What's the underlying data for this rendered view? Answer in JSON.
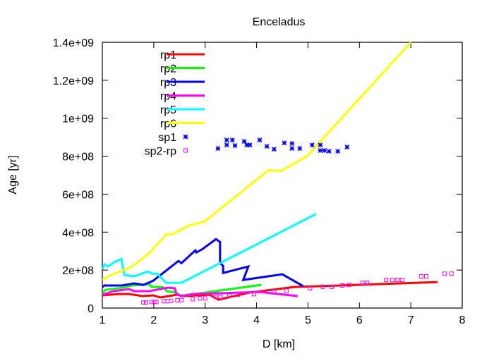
{
  "chart_data": {
    "type": "line",
    "title": "Enceladus",
    "xlabel": "D [km]",
    "ylabel": "Age [yr]",
    "xlim": [
      1,
      8
    ],
    "ylim": [
      0,
      1400000000
    ],
    "xticks": [
      1,
      2,
      3,
      4,
      5,
      6,
      7,
      8
    ],
    "xtick_labels": [
      "1",
      "2",
      "3",
      "4",
      "5",
      "6",
      "7",
      "8"
    ],
    "yticks": [
      0,
      200000000,
      400000000,
      600000000,
      800000000,
      1000000000,
      1200000000,
      1400000000
    ],
    "ytick_labels": [
      "0",
      "2e+08",
      "4e+08",
      "6e+08",
      "8e+08",
      "1e+09",
      "1.2e+09",
      "1.4e+09"
    ],
    "grid": false,
    "legend": "top-left",
    "series": [
      {
        "name": "rp1",
        "style": "line",
        "color": "#ff0000",
        "x": [
          1.0,
          1.3,
          1.52,
          1.78,
          1.99,
          2.13,
          2.44,
          2.58,
          3.09,
          3.26,
          3.85,
          4.73,
          5.6,
          7.52
        ],
        "y": [
          67000000,
          74000000,
          74000000,
          63000000,
          67000000,
          56000000,
          70000000,
          63000000,
          70000000,
          44000000,
          81000000,
          111000000,
          119000000,
          137000000
        ]
      },
      {
        "name": "rp2",
        "style": "line",
        "color": "#00ff00",
        "x": [
          1.0,
          1.07,
          1.38,
          1.58,
          1.92,
          1.96,
          2.17,
          2.26,
          2.44,
          2.51,
          2.61,
          4.09
        ],
        "y": [
          80000000,
          96000000,
          107000000,
          119000000,
          126000000,
          111000000,
          111000000,
          89000000,
          81000000,
          67000000,
          67000000,
          122000000
        ]
      },
      {
        "name": "rp3",
        "style": "line",
        "color": "#0000ff",
        "x": [
          1.0,
          1.04,
          1.38,
          1.62,
          1.8,
          1.99,
          2.48,
          2.54,
          2.81,
          2.83,
          2.95,
          3.21,
          3.29,
          3.29,
          3.35,
          3.35,
          3.84,
          3.74,
          4.5,
          4.91
        ],
        "y": [
          111000000,
          119000000,
          119000000,
          130000000,
          122000000,
          144000000,
          248000000,
          237000000,
          304000000,
          293000000,
          311000000,
          363000000,
          348000000,
          237000000,
          222000000,
          185000000,
          219000000,
          148000000,
          178000000,
          115000000
        ]
      },
      {
        "name": "rp4",
        "style": "line",
        "color": "#ff00ff",
        "x": [
          1.0,
          1.21,
          1.52,
          1.62,
          1.92,
          1.99,
          2.19,
          2.3,
          2.41,
          2.44,
          2.54,
          2.76,
          4.05,
          4.8
        ],
        "y": [
          70000000,
          89000000,
          100000000,
          89000000,
          89000000,
          93000000,
          104000000,
          107000000,
          104000000,
          74000000,
          63000000,
          74000000,
          85000000,
          63000000
        ]
      },
      {
        "name": "rp5",
        "style": "line",
        "color": "#00ffff",
        "x": [
          1.0,
          1.04,
          1.11,
          1.23,
          1.37,
          1.43,
          1.62,
          1.89,
          1.96,
          2.07,
          2.24,
          2.54,
          5.16
        ],
        "y": [
          204000000,
          230000000,
          219000000,
          241000000,
          259000000,
          174000000,
          167000000,
          193000000,
          181000000,
          181000000,
          133000000,
          133000000,
          496000000
        ]
      },
      {
        "name": "rp6",
        "style": "line",
        "color": "#ffff00",
        "x": [
          1.0,
          1.11,
          1.58,
          1.93,
          2.02,
          2.25,
          2.37,
          2.67,
          2.99,
          4.23,
          4.47,
          4.98,
          6.7,
          7.0
        ],
        "y": [
          148000000,
          167000000,
          219000000,
          293000000,
          322000000,
          389000000,
          389000000,
          433000000,
          456000000,
          726000000,
          722000000,
          800000000,
          1311000000,
          1400000000
        ]
      },
      {
        "name": "sp1",
        "style": "points",
        "marker": "star",
        "color": "#0000ff",
        "x": [
          3.25,
          3.42,
          3.42,
          3.53,
          3.58,
          3.76,
          3.81,
          3.87,
          4.06,
          4.2,
          4.34,
          4.54,
          4.69,
          4.69,
          4.84,
          5.08,
          5.24,
          5.24,
          5.32,
          5.41,
          5.58,
          5.76
        ],
        "y": [
          841000000,
          885000000,
          859000000,
          885000000,
          856000000,
          878000000,
          859000000,
          859000000,
          885000000,
          852000000,
          837000000,
          870000000,
          867000000,
          841000000,
          841000000,
          859000000,
          859000000,
          830000000,
          830000000,
          826000000,
          826000000,
          848000000
        ]
      },
      {
        "name": "sp2-rp",
        "style": "points",
        "marker": "square",
        "color": "#ff00ff",
        "x": [
          1.8,
          1.85,
          1.96,
          2.01,
          2.05,
          2.2,
          2.27,
          2.34,
          2.46,
          2.54,
          2.76,
          2.9,
          3.0,
          3.21,
          3.3,
          3.47,
          3.64,
          3.95,
          4.34,
          4.58,
          5.04,
          5.29,
          5.46,
          5.67,
          5.8,
          6.06,
          6.15,
          6.52,
          6.64,
          6.74,
          6.83,
          7.2,
          7.3,
          7.66,
          7.79
        ],
        "y": [
          29000000,
          29000000,
          32000000,
          32000000,
          32000000,
          36000000,
          36000000,
          38000000,
          41000000,
          42000000,
          47000000,
          51000000,
          51000000,
          59000000,
          59000000,
          65000000,
          71000000,
          73000000,
          88000000,
          91000000,
          104000000,
          112000000,
          112000000,
          119000000,
          122000000,
          133000000,
          133000000,
          148000000,
          148000000,
          148000000,
          148000000,
          167000000,
          167000000,
          181000000,
          181000000
        ]
      }
    ]
  }
}
